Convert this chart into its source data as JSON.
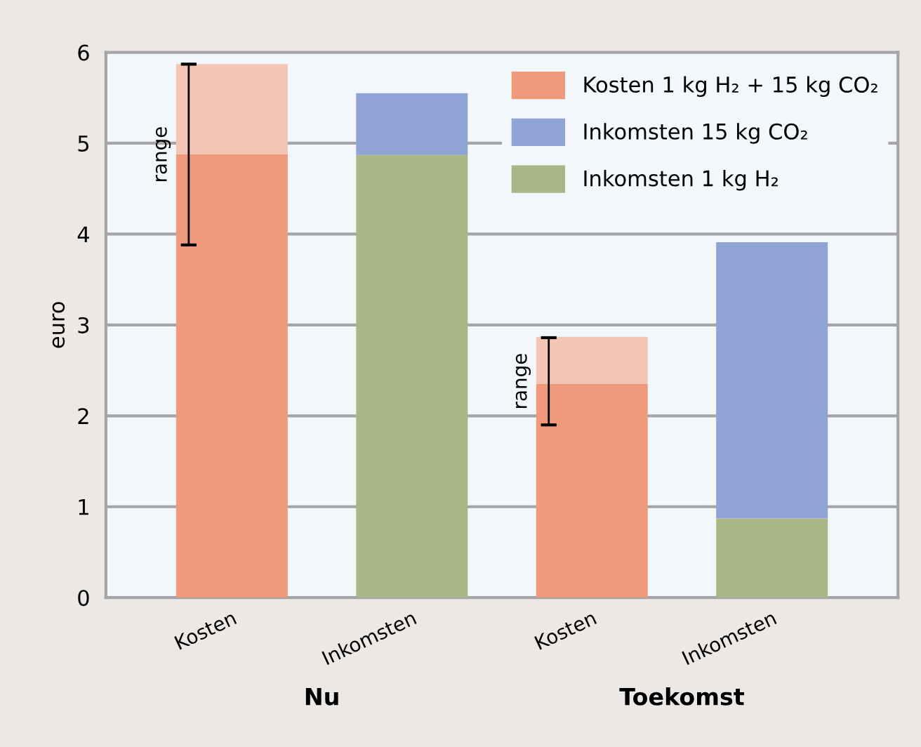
{
  "chart_data": {
    "type": "bar",
    "stacked": true,
    "ylabel": "euro",
    "categories": [
      "Kosten",
      "Inkomsten",
      "Kosten",
      "Inkomsten"
    ],
    "series": [
      {
        "name": "Inkomsten 1 kg H₂",
        "color": "#a9b787",
        "values": [
          null,
          4.87,
          null,
          0.87
        ]
      },
      {
        "name": "Inkomsten 15 kg CO₂",
        "color": "#8fa3d4",
        "values": [
          null,
          0.68,
          null,
          3.04
        ]
      },
      {
        "name": "Kosten 1 kg H₂ + 15 kg CO₂",
        "color": "#f09a7c",
        "values": [
          4.88,
          null,
          2.35,
          null
        ],
        "errors": [
          [
            3.88,
            5.87
          ],
          null,
          [
            1.9,
            2.86
          ],
          null
        ]
      },
      {
        "color": "#f3c5b4",
        "values": [
          0.99,
          null,
          0.52,
          null
        ]
      }
    ],
    "ylim": [
      0,
      6
    ],
    "yticks": [
      0,
      1,
      2,
      3,
      4,
      5,
      6
    ],
    "grid": "y",
    "legend": "top right",
    "annotations": [
      "range",
      "range",
      "Nu",
      "Toekomst"
    ]
  }
}
